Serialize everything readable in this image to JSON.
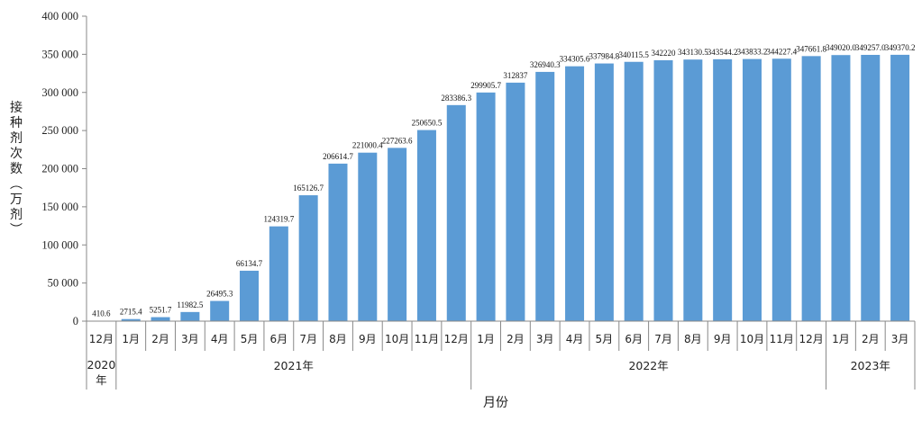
{
  "chart_data": {
    "type": "bar",
    "title": "",
    "xlabel": "月份",
    "ylabel": "接种剂次数（万剂）",
    "ylim": [
      0,
      400000
    ],
    "yticks": [
      0,
      50000,
      100000,
      150000,
      200000,
      250000,
      300000,
      350000,
      400000
    ],
    "ytick_labels": [
      "0",
      "50 000",
      "100 000",
      "150 000",
      "200 000",
      "250 000",
      "300 000",
      "350 000",
      "400 000"
    ],
    "categories": [
      "12月",
      "1月",
      "2月",
      "3月",
      "4月",
      "5月",
      "6月",
      "7月",
      "8月",
      "9月",
      "10月",
      "11月",
      "12月",
      "1月",
      "2月",
      "3月",
      "4月",
      "5月",
      "6月",
      "7月",
      "8月",
      "9月",
      "10月",
      "11月",
      "12月",
      "1月",
      "2月",
      "3月"
    ],
    "values": [
      410.6,
      2715.4,
      5251.7,
      11982.5,
      26495.3,
      66134.7,
      124319.7,
      165126.7,
      206614.7,
      221000.4,
      227263.6,
      250650.5,
      283386.3,
      299905.7,
      312837,
      326940.3,
      334305.6,
      337984.8,
      340115.5,
      342220,
      343130.5,
      343544.2,
      343833.2,
      344227.4,
      347661.8,
      349020.0,
      349257.0,
      349370.2
    ],
    "value_labels": [
      "410.6",
      "2715.4",
      "5251.7",
      "11982.5",
      "26495.3",
      "66134.7",
      "124319.7",
      "165126.7",
      "206614.7",
      "221000.4",
      "227263.6",
      "250650.5",
      "283386.3",
      "299905.7",
      "312837",
      "326940.3",
      "334305.6",
      "337984.8",
      "340115.5",
      "342220",
      "343130.5",
      "343544.2",
      "343833.2",
      "344227.4",
      "347661.8",
      "349020.0",
      "349257.0",
      "349370.2"
    ],
    "year_groups": [
      {
        "label": "2020年",
        "start": 0,
        "end": 0
      },
      {
        "label": "2021年",
        "start": 1,
        "end": 12
      },
      {
        "label": "2022年",
        "start": 13,
        "end": 24
      },
      {
        "label": "2023年",
        "start": 25,
        "end": 27
      }
    ],
    "bar_color": "#5b9bd5",
    "grid": false,
    "legend": "none"
  }
}
